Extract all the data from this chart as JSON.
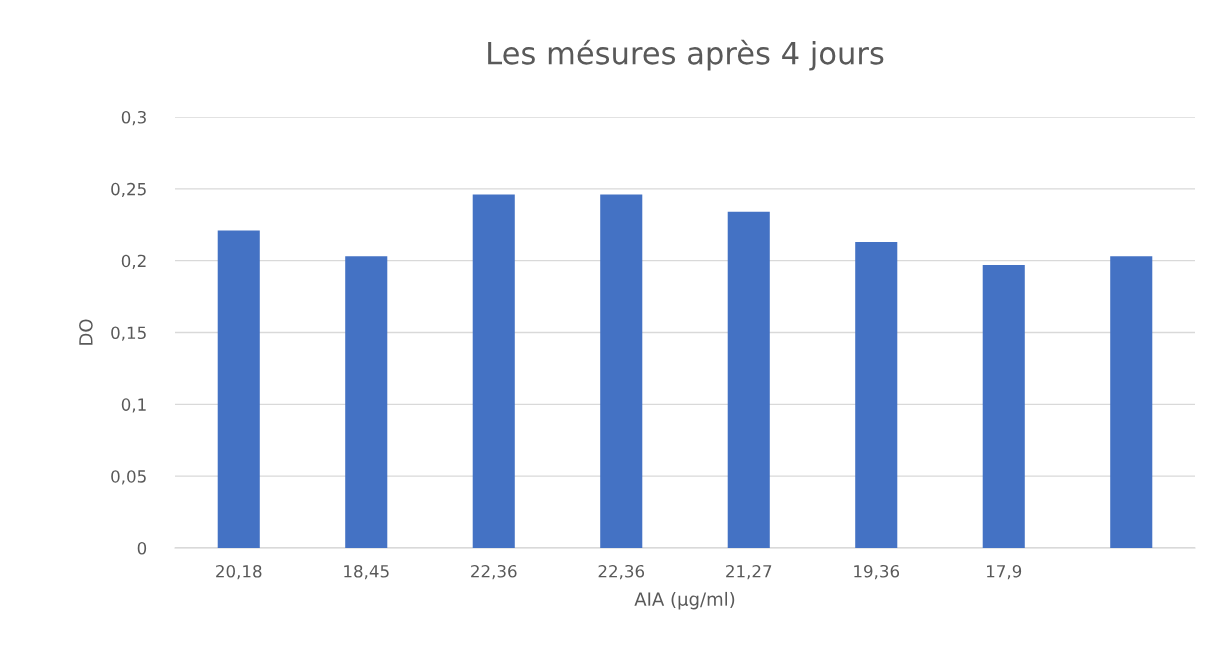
{
  "chart_data": {
    "type": "bar",
    "title": "Les mésures après 4 jours",
    "xlabel": "AIA (µg/ml)",
    "ylabel": "DO",
    "categories": [
      "20,18",
      "18,45",
      "22,36",
      "22,36",
      "21,27",
      "19,36",
      "17,9",
      null
    ],
    "values": [
      0.221,
      0.203,
      0.246,
      0.246,
      0.234,
      0.213,
      0.197,
      0.203
    ],
    "color": "#4472c4",
    "ylim": [
      0,
      0.3
    ],
    "yticks": [
      0,
      {
        "value": 0.05,
        "label": "0,05"
      },
      {
        "value": 0.1,
        "label": "0,1"
      },
      {
        "value": 0.15,
        "label": "0,15"
      },
      {
        "value": 0.2,
        "label": "0,2"
      },
      {
        "value": 0.25,
        "label": "0,25"
      },
      {
        "value": 0.3,
        "label": "0,3"
      }
    ],
    "grid": "y",
    "legend": false
  }
}
